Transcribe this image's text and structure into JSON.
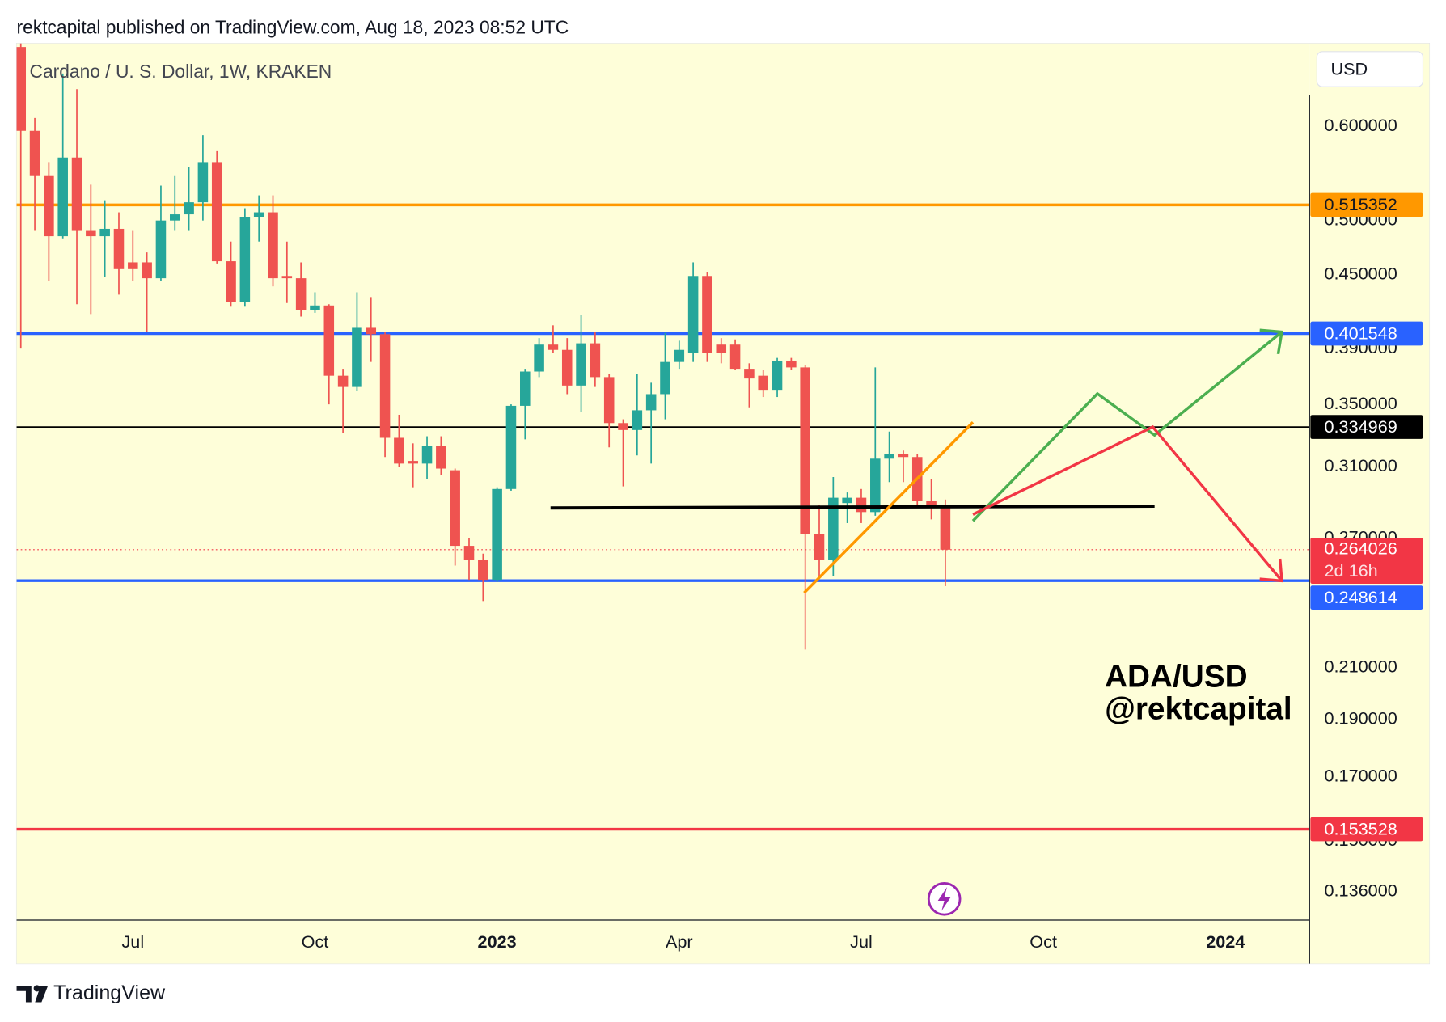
{
  "header": "rektcapital published on TradingView.com, Aug 18, 2023 08:52 UTC",
  "footer": "TradingView",
  "chart_data": {
    "type": "candlestick",
    "title": "Cardano / U. S. Dollar, 1W, KRAKEN",
    "currency": "USD",
    "annotation": [
      "ADA/USD",
      "@rektcapital"
    ],
    "open": [
      0.7,
      0.595,
      0.545,
      0.485,
      0.565,
      0.49,
      0.485,
      0.492,
      0.461,
      0.461,
      0.447,
      0.5,
      0.506,
      0.518,
      0.56,
      0.462,
      0.427,
      0.503,
      0.508,
      0.449,
      0.447,
      0.42,
      0.424,
      0.37,
      0.362,
      0.406,
      0.401,
      0.328,
      0.3136,
      0.312,
      0.323,
      0.308,
      0.266,
      0.259,
      0.249,
      0.297,
      0.349,
      0.373,
      0.393,
      0.389,
      0.363,
      0.394,
      0.369,
      0.3375,
      0.333,
      0.346,
      0.357,
      0.38,
      0.387,
      0.449,
      0.393,
      0.393,
      0.375,
      0.37,
      0.36,
      0.381,
      0.376,
      0.272,
      0.259,
      0.289,
      0.292,
      0.284,
      0.315,
      0.318,
      0.316,
      0.29,
      0.288
    ],
    "high": [
      0.705,
      0.61,
      0.56,
      0.665,
      0.645,
      0.536,
      0.52,
      0.508,
      0.49,
      0.47,
      0.535,
      0.545,
      0.555,
      0.59,
      0.572,
      0.48,
      0.512,
      0.525,
      0.525,
      0.48,
      0.461,
      0.435,
      0.425,
      0.375,
      0.435,
      0.431,
      0.403,
      0.343,
      0.3245,
      0.329,
      0.329,
      0.309,
      0.27,
      0.262,
      0.298,
      0.35,
      0.375,
      0.398,
      0.408,
      0.398,
      0.416,
      0.403,
      0.371,
      0.34,
      0.371,
      0.365,
      0.402,
      0.396,
      0.461,
      0.452,
      0.398,
      0.397,
      0.379,
      0.374,
      0.383,
      0.383,
      0.378,
      0.288,
      0.304,
      0.295,
      0.297,
      0.376,
      0.332,
      0.32,
      0.318,
      0.303,
      0.291
    ],
    "low": [
      0.39,
      0.49,
      0.445,
      0.483,
      0.425,
      0.417,
      0.448,
      0.433,
      0.445,
      0.403,
      0.445,
      0.49,
      0.49,
      0.5,
      0.46,
      0.423,
      0.423,
      0.48,
      0.44,
      0.426,
      0.415,
      0.418,
      0.35,
      0.331,
      0.359,
      0.38,
      0.316,
      0.31,
      0.298,
      0.303,
      0.305,
      0.256,
      0.249,
      0.239,
      0.248,
      0.296,
      0.327,
      0.369,
      0.387,
      0.357,
      0.345,
      0.362,
      0.322,
      0.2985,
      0.317,
      0.312,
      0.34,
      0.375,
      0.38,
      0.38,
      0.379,
      0.374,
      0.348,
      0.355,
      0.355,
      0.374,
      0.2175,
      0.25,
      0.251,
      0.278,
      0.278,
      0.282,
      0.301,
      0.301,
      0.288,
      0.28,
      0.246
    ],
    "close": [
      0.595,
      0.545,
      0.485,
      0.565,
      0.49,
      0.485,
      0.492,
      0.455,
      0.455,
      0.447,
      0.5,
      0.506,
      0.518,
      0.56,
      0.462,
      0.427,
      0.503,
      0.508,
      0.447,
      0.447,
      0.42,
      0.424,
      0.37,
      0.362,
      0.406,
      0.401,
      0.328,
      0.312,
      0.312,
      0.323,
      0.309,
      0.266,
      0.259,
      0.249,
      0.297,
      0.349,
      0.373,
      0.393,
      0.389,
      0.363,
      0.394,
      0.369,
      0.3375,
      0.333,
      0.346,
      0.357,
      0.38,
      0.389,
      0.449,
      0.387,
      0.387,
      0.375,
      0.368,
      0.36,
      0.381,
      0.376,
      0.272,
      0.259,
      0.292,
      0.292,
      0.284,
      0.315,
      0.318,
      0.316,
      0.29,
      0.288,
      0.264026
    ],
    "colors": {
      "up": "#26a69a",
      "down": "#ef5350"
    },
    "log_scale": true,
    "grid": false,
    "xlim": [
      -0.3,
      92
    ],
    "xticks": [
      {
        "value": 8,
        "label": "Jul"
      },
      {
        "value": 21,
        "label": "Oct"
      },
      {
        "value": 34,
        "label": "2023"
      },
      {
        "value": 47,
        "label": "Apr"
      },
      {
        "value": 60,
        "label": "Jul"
      },
      {
        "value": 73,
        "label": "Oct"
      },
      {
        "value": 86,
        "label": "2024"
      }
    ],
    "ylim": [
      0.1287,
      0.705
    ],
    "yticks": [
      {
        "value": 0.6,
        "label": "0.600000"
      },
      {
        "value": 0.5,
        "label": "0.500000"
      },
      {
        "value": 0.45,
        "label": "0.450000"
      },
      {
        "value": 0.39,
        "label": "0.390000"
      },
      {
        "value": 0.35,
        "label": "0.350000"
      },
      {
        "value": 0.31,
        "label": "0.310000"
      },
      {
        "value": 0.27,
        "label": "0.270000"
      },
      {
        "value": 0.21,
        "label": "0.210000"
      },
      {
        "value": 0.19,
        "label": "0.190000"
      },
      {
        "value": 0.17,
        "label": "0.170000"
      },
      {
        "value": 0.15,
        "label": "0.150000"
      },
      {
        "value": 0.136,
        "label": "0.136000"
      }
    ],
    "levels": [
      {
        "value": 0.515352,
        "color": "#ff9800"
      },
      {
        "value": 0.401548,
        "color": "#2962ff"
      },
      {
        "value": 0.334969,
        "color": "#000000"
      },
      {
        "value": 0.248614,
        "color": "#2962ff"
      },
      {
        "value": 0.153528,
        "color": "#f23645"
      }
    ],
    "current_price": {
      "value": 0.264026,
      "countdown": "2d 16h",
      "color": "#f23645"
    }
  }
}
